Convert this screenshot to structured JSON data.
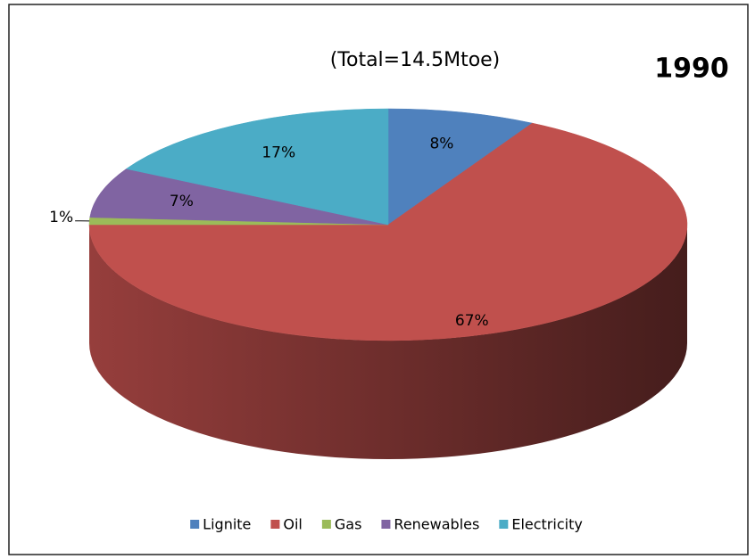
{
  "chart_data": {
    "type": "pie",
    "title": "1990",
    "subtitle": "(Total=14.5Mtoe)",
    "categories": [
      "Lignite",
      "Oil",
      "Gas",
      "Renewables",
      "Electricity"
    ],
    "values": [
      8,
      67,
      1,
      7,
      17
    ],
    "value_labels": [
      "8%",
      "67%",
      "1%",
      "7%",
      "17%"
    ],
    "colors": [
      "#4f81bd",
      "#c0504d",
      "#9bbb59",
      "#8064a2",
      "#4bacc6"
    ],
    "legend": "bottom"
  }
}
